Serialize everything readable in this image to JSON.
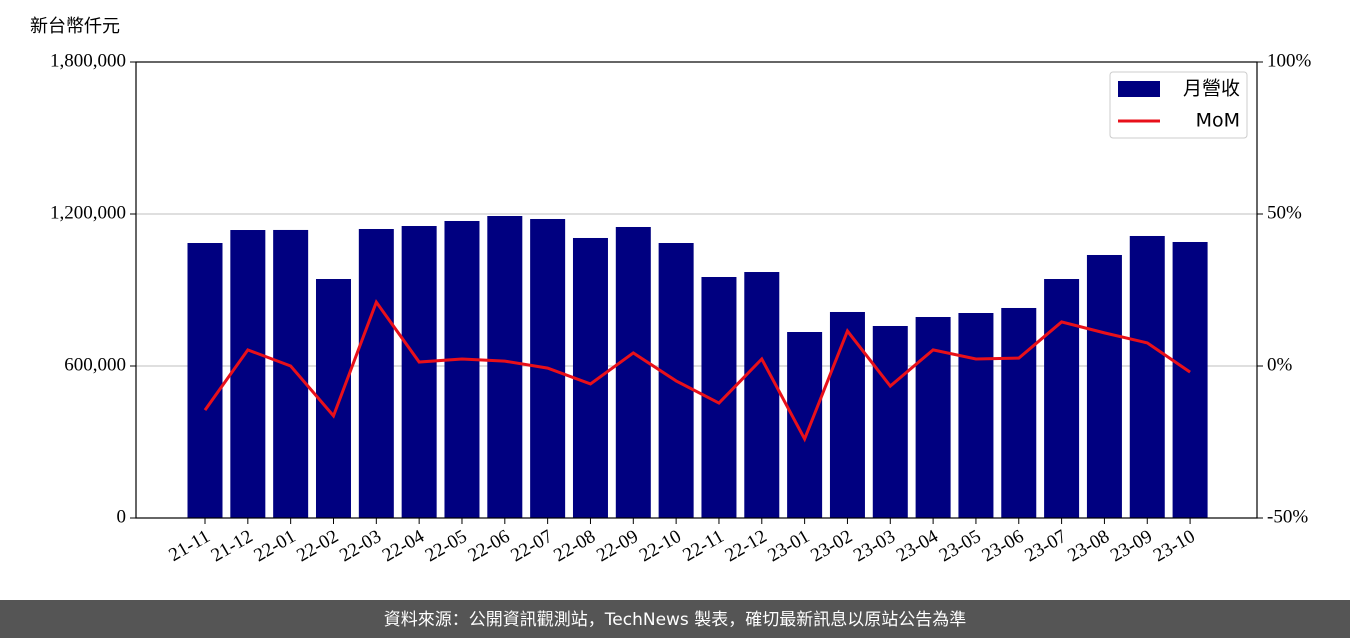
{
  "chart_data": {
    "type": "bar_line",
    "ylabel": "新台幣仟元",
    "footer": "資料來源：公開資訊觀測站，TechNews 製表，確切最新訊息以原站公告為準",
    "categories": [
      "21-11",
      "21-12",
      "22-01",
      "22-02",
      "22-03",
      "22-04",
      "22-05",
      "22-06",
      "22-07",
      "22-08",
      "22-09",
      "22-10",
      "22-11",
      "22-12",
      "23-01",
      "23-02",
      "23-03",
      "23-04",
      "23-05",
      "23-06",
      "23-07",
      "23-08",
      "23-09",
      "23-10"
    ],
    "series": [
      {
        "name": "月營收",
        "type": "bar",
        "color": "#000080",
        "values": [
          1085500,
          1136800,
          1137000,
          943400,
          1140800,
          1152600,
          1172400,
          1192100,
          1180300,
          1105300,
          1148700,
          1085500,
          951300,
          971000,
          734200,
          813200,
          757900,
          793400,
          809200,
          829000,
          943400,
          1038200,
          1113200,
          1089500
        ]
      },
      {
        "name": "MoM",
        "type": "line",
        "axis": "y2",
        "color": "#e8101a",
        "values": [
          -14.5,
          5.3,
          0,
          -16.4,
          21,
          1.3,
          2.3,
          1.6,
          -0.7,
          -5.9,
          4.3,
          -4.9,
          -12.2,
          2.3,
          -24,
          11.5,
          -6.6,
          5.3,
          2.3,
          2.6,
          14.5,
          10.9,
          7.6,
          -2
        ]
      }
    ],
    "ylim": [
      0,
      1800000
    ],
    "yticks": [
      0,
      {
        "value": 600000,
        "label": "600,000"
      },
      {
        "value": 1200000,
        "label": "1,200,000"
      },
      {
        "value": 1800000,
        "label": "1,800,000"
      }
    ],
    "y2lim": [
      -50,
      100
    ],
    "y2ticks": [
      {
        "value": -50,
        "label": "-50%"
      },
      {
        "value": 0,
        "label": "0%"
      },
      {
        "value": 50,
        "label": "50%"
      },
      {
        "value": 100,
        "label": "100%"
      }
    ],
    "grid": true,
    "legend": "upper right"
  }
}
